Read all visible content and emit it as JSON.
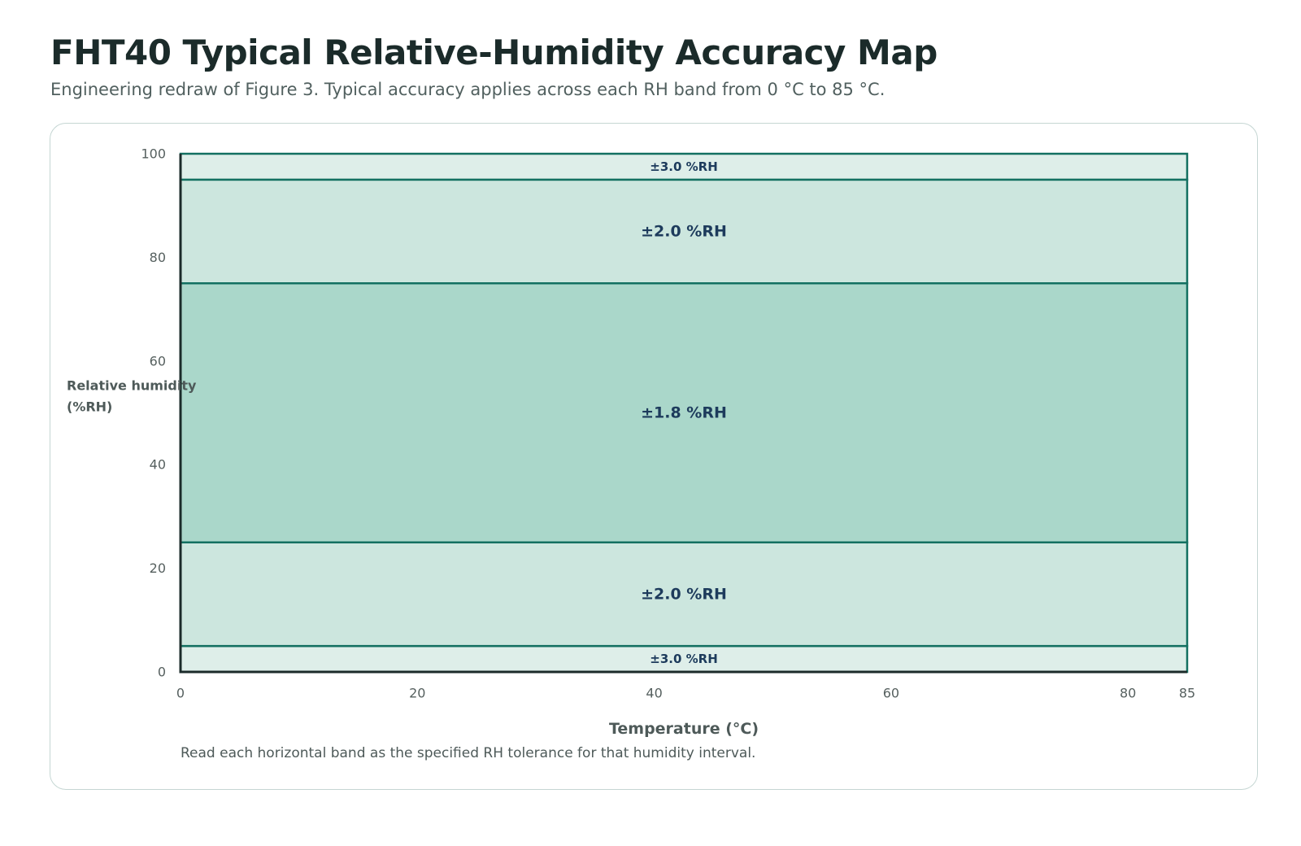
{
  "header": {
    "title": "FHT40 Typical Relative-Humidity Accuracy Map",
    "subtitle": "Engineering redraw of Figure 3. Typical accuracy applies across each RH band from 0 °C to 85 °C."
  },
  "colors": {
    "band_outer": "#deeee9",
    "band_mid": "#cce6de",
    "band_center": "#aad7ca",
    "band_border": "#137061",
    "axis": "#1b2b2a"
  },
  "chart_data": {
    "type": "heatmap",
    "title": "FHT40 Typical Relative-Humidity Accuracy Map",
    "xlabel": "Temperature (°C)",
    "ylabel_lines": [
      "Relative humidity",
      "(%RH)"
    ],
    "xlim": [
      0,
      85
    ],
    "ylim": [
      0,
      100
    ],
    "x_ticks": [
      0,
      20,
      40,
      60,
      80,
      85
    ],
    "y_ticks": [
      0,
      20,
      40,
      60,
      80,
      100
    ],
    "bands": [
      {
        "rh_min": 0,
        "rh_max": 5,
        "accuracy": 3.0,
        "label": "±3.0 %RH",
        "tone": "outer"
      },
      {
        "rh_min": 5,
        "rh_max": 25,
        "accuracy": 2.0,
        "label": "±2.0 %RH",
        "tone": "mid"
      },
      {
        "rh_min": 25,
        "rh_max": 75,
        "accuracy": 1.8,
        "label": "±1.8 %RH",
        "tone": "center"
      },
      {
        "rh_min": 75,
        "rh_max": 95,
        "accuracy": 2.0,
        "label": "±2.0 %RH",
        "tone": "mid"
      },
      {
        "rh_min": 95,
        "rh_max": 100,
        "accuracy": 3.0,
        "label": "±3.0 %RH",
        "tone": "outer"
      }
    ],
    "note": "Read each horizontal band as the specified RH tolerance for that humidity interval.",
    "grid": false,
    "legend": "none"
  }
}
